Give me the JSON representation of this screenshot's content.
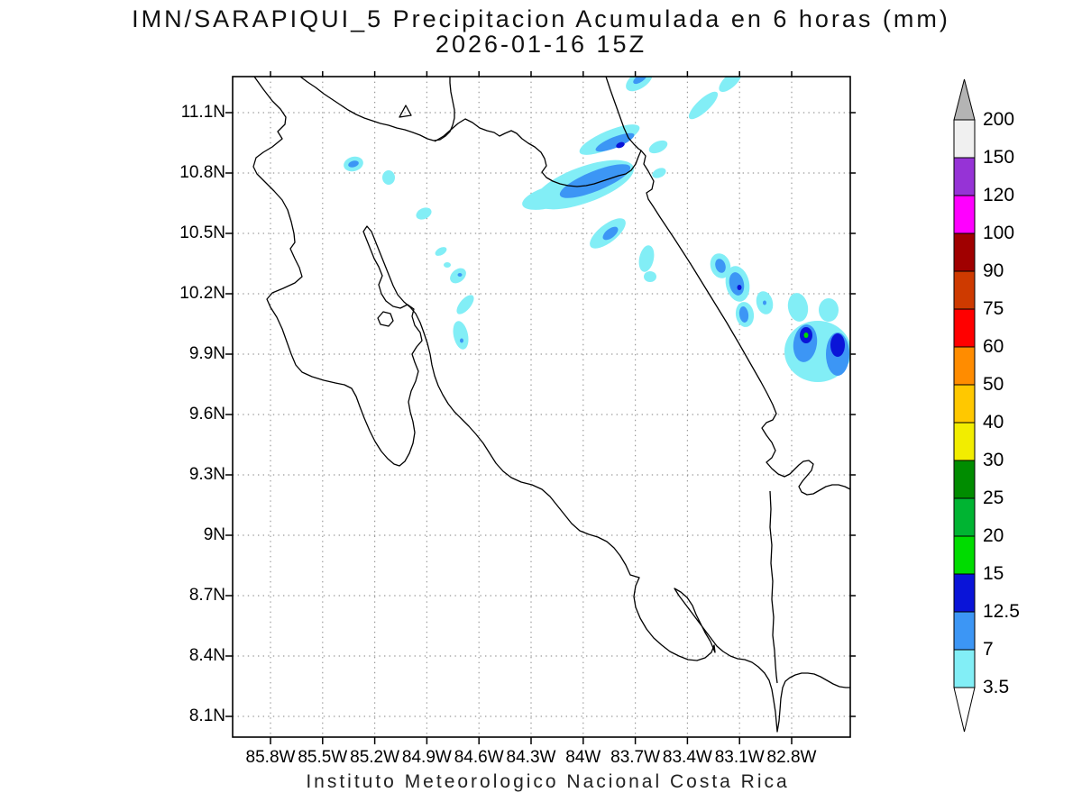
{
  "title": {
    "line1": "IMN/SARAPIQUI_5 Precipitacion Acumulada en 6 horas (mm)",
    "line2": "2026-01-16 15Z"
  },
  "caption": "Instituto Meteorologico Nacional Costa Rica",
  "axes": {
    "lat_ticks": [
      "11.1N",
      "10.8N",
      "10.5N",
      "10.2N",
      "9.9N",
      "9.6N",
      "9.3N",
      "9N",
      "8.7N",
      "8.4N",
      "8.1N"
    ],
    "lon_ticks": [
      "85.8W",
      "85.5W",
      "85.2W",
      "84.9W",
      "84.6W",
      "84.3W",
      "84W",
      "83.7W",
      "83.4W",
      "83.1W",
      "82.8W"
    ]
  },
  "chart_data": {
    "type": "map",
    "subtype": "filled-contour precipitation map",
    "region": "Costa Rica and borders (Nicaragua, Panama)",
    "units": "mm per 6 hours",
    "lat_range_n": [
      7.98,
      11.28
    ],
    "lon_range_w": [
      86.02,
      82.46
    ],
    "grid": "dotted graticule every 0.3 degrees",
    "levels_mm": [
      3.5,
      7,
      12.5,
      15,
      20,
      25,
      30,
      40,
      50,
      60,
      75,
      90,
      100,
      120,
      150,
      200
    ],
    "segment_colors_low_to_high": [
      "#82EEF6",
      "#3C96F5",
      "#0A14D8",
      "#00DC00",
      "#00B432",
      "#008C00",
      "#F2ED00",
      "#FFC800",
      "#FF8C00",
      "#FF0000",
      "#CE3A00",
      "#A00000",
      "#FF00FF",
      "#9633D6",
      "#F0F0F0"
    ],
    "colorbar": {
      "orientation": "vertical-right",
      "arrow_top_color": "#B4B4B4",
      "arrow_bottom_color": "#FFFFFF",
      "max_label": "200",
      "min_label": "3.5"
    },
    "max_shaded_value_on_map_mm": "15-20 (single green core near 82.9W 9.95N)",
    "cell_format": "[cx_px, cy_px, rx_px, ry_px, rotation_deg, level_mm]",
    "cells": [
      [
        709,
        89,
        17,
        9,
        -35,
        "3.5"
      ],
      [
        780,
        117,
        21,
        7,
        -43,
        "3.5"
      ],
      [
        810,
        90,
        16,
        7,
        -43,
        "3.5"
      ],
      [
        730,
        163,
        11,
        6,
        -25,
        "3.5"
      ],
      [
        731,
        192,
        8,
        5,
        -25,
        "3.5"
      ],
      [
        648,
        205,
        58,
        20,
        -20,
        "3.5"
      ],
      [
        612,
        218,
        34,
        12,
        -16,
        "3.5"
      ],
      [
        676,
        155,
        36,
        10,
        -23,
        "3.5"
      ],
      [
        392,
        182,
        11,
        8,
        -15,
        "3.5"
      ],
      [
        431,
        197,
        7,
        8,
        0,
        "3.5"
      ],
      [
        470,
        237,
        9,
        6,
        -25,
        "3.5"
      ],
      [
        489,
        279,
        7,
        4,
        -30,
        "3.5"
      ],
      [
        496,
        294,
        4,
        3,
        0,
        "3.5"
      ],
      [
        508,
        306,
        10,
        7,
        -40,
        "3.5"
      ],
      [
        516,
        338,
        13,
        6,
        -50,
        "3.5"
      ],
      [
        511,
        372,
        8,
        16,
        -12,
        "3.5"
      ],
      [
        674,
        259,
        24,
        10,
        -38,
        "3.5"
      ],
      [
        717,
        287,
        8,
        15,
        12,
        "3.5"
      ],
      [
        721,
        307,
        7,
        6,
        0,
        "3.5"
      ],
      [
        799,
        295,
        11,
        14,
        -18,
        "3.5"
      ],
      [
        818,
        315,
        13,
        20,
        -12,
        "3.5"
      ],
      [
        826,
        349,
        10,
        14,
        -8,
        "3.5"
      ],
      [
        848,
        336,
        9,
        13,
        -14,
        "3.5"
      ],
      [
        885,
        341,
        11,
        16,
        -10,
        "3.5"
      ],
      [
        919,
        344,
        11,
        13,
        0,
        "3.5"
      ],
      [
        907,
        390,
        37,
        34,
        0,
        "3.5"
      ],
      [
        710,
        87,
        9,
        4,
        -35,
        "7"
      ],
      [
        660,
        201,
        42,
        11,
        -22,
        "7"
      ],
      [
        682,
        158,
        23,
        6,
        -22,
        "7"
      ],
      [
        392,
        182,
        6,
        3.5,
        -15,
        "7"
      ],
      [
        510,
        305,
        2.5,
        2,
        0,
        "7"
      ],
      [
        512,
        378,
        2,
        2.5,
        0,
        "7"
      ],
      [
        677,
        259,
        10,
        5,
        -38,
        "7"
      ],
      [
        799,
        295,
        5.5,
        8,
        -18,
        "7"
      ],
      [
        817,
        315,
        8,
        13,
        -12,
        "7"
      ],
      [
        825,
        349,
        5,
        9,
        -8,
        "7"
      ],
      [
        848,
        336,
        2,
        2.5,
        0,
        "7"
      ],
      [
        893,
        381,
        13,
        21,
        8,
        "7"
      ],
      [
        929,
        393,
        13,
        24,
        0,
        "7"
      ],
      [
        688,
        161,
        5,
        3,
        -22,
        "12.5"
      ],
      [
        820,
        319,
        2.5,
        3,
        0,
        "12.5"
      ],
      [
        894,
        372,
        7,
        9,
        0,
        "12.5"
      ],
      [
        929,
        383,
        8,
        13,
        0,
        "12.5"
      ],
      [
        894,
        372,
        2.5,
        3,
        0,
        "15"
      ]
    ]
  },
  "map_style": {
    "coastline_color": "#000000",
    "grid_color": "#9A9A9A",
    "background": "#FFFFFF"
  }
}
